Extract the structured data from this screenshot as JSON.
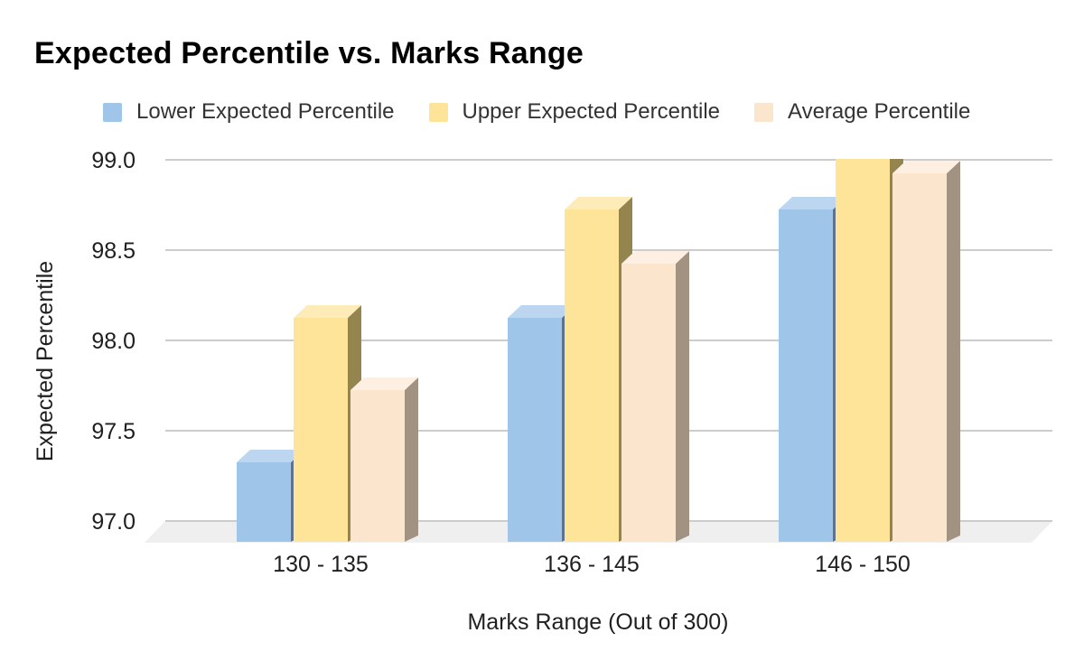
{
  "title": "Expected Percentile vs. Marks Range",
  "legend": [
    {
      "label": "Lower Expected Percentile",
      "color": "#9fc5e8"
    },
    {
      "label": "Upper Expected Percentile",
      "color": "#fde499"
    },
    {
      "label": "Average Percentile",
      "color": "#fce5cd"
    }
  ],
  "chart_data": {
    "type": "bar",
    "style": "3d-grouped-columns",
    "title": "Expected Percentile vs. Marks Range",
    "xlabel": "Marks Range (Out of 300)",
    "ylabel": "Expected Percentile",
    "categories": [
      "130 - 135",
      "136 - 145",
      "146 - 150"
    ],
    "series": [
      {
        "name": "Lower Expected Percentile",
        "values": [
          97.35,
          98.15,
          98.75
        ],
        "color": "#9fc5e8",
        "top_color": "#bcd6ef",
        "side_color": "#5d7191"
      },
      {
        "name": "Upper Expected Percentile",
        "values": [
          98.15,
          98.75,
          99.15
        ],
        "color": "#fde499",
        "top_color": "#fdecb8",
        "side_color": "#94844d"
      },
      {
        "name": "Average Percentile",
        "values": [
          97.75,
          98.45,
          98.95
        ],
        "color": "#fce5cd",
        "top_color": "#fdf0e3",
        "side_color": "#a29282"
      }
    ],
    "ylim": [
      97.0,
      99.0
    ],
    "yticks": [
      97.0,
      97.5,
      98.0,
      98.5,
      99.0
    ],
    "grid": true,
    "gridline_color": "#cccccc",
    "floor_color": "#efefef",
    "text_color": "#1f1f1f",
    "legend_position": "top",
    "note": "Upper bar of 146 - 150 group is clipped at axis max 99.0"
  }
}
